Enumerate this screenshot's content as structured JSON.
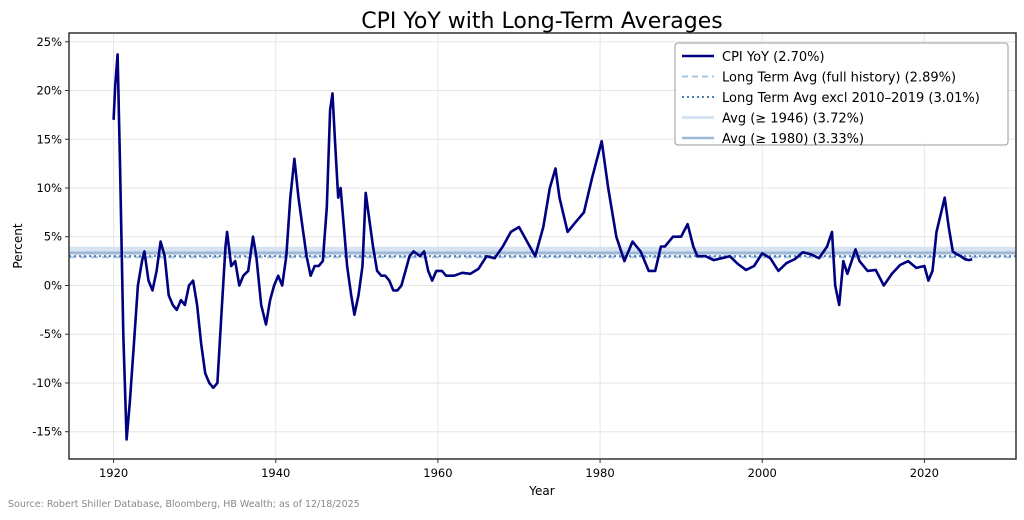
{
  "chart_data": {
    "type": "line",
    "title": "CPI YoY with Long-Term Averages",
    "xlabel": "Year",
    "ylabel": "Percent",
    "xlim": [
      1914.5,
      2031.3
    ],
    "ylim": [
      -17.8,
      25.9
    ],
    "xticks": [
      1920,
      1940,
      1960,
      1980,
      2000,
      2020
    ],
    "yticks": [
      -15,
      -10,
      -5,
      0,
      5,
      10,
      15,
      20,
      25
    ],
    "ytick_format": "%",
    "grid": true,
    "legend_position": "top-right",
    "series": [
      {
        "name": "CPI YoY (2.70%)",
        "color": "#000080",
        "x": [
          1920.0,
          1920.2,
          1920.5,
          1920.8,
          1921.2,
          1921.6,
          1922,
          1922.5,
          1923,
          1923.5,
          1923.8,
          1924.3,
          1924.8,
          1925.3,
          1925.8,
          1926.3,
          1926.8,
          1927.3,
          1927.8,
          1928.3,
          1928.8,
          1929.3,
          1929.8,
          1930.3,
          1930.8,
          1931.3,
          1931.8,
          1932.3,
          1932.8,
          1933.3,
          1933.8,
          1934,
          1934.5,
          1935,
          1935.5,
          1936,
          1936.6,
          1937.2,
          1937.6,
          1938.2,
          1938.8,
          1939.3,
          1939.8,
          1940.3,
          1940.8,
          1941.3,
          1941.8,
          1942.3,
          1942.8,
          1943.3,
          1943.8,
          1944.3,
          1944.8,
          1945.3,
          1945.8,
          1946.3,
          1946.7,
          1947,
          1947.3,
          1947.7,
          1948,
          1948.4,
          1948.8,
          1949.3,
          1949.7,
          1950.2,
          1950.7,
          1951.1,
          1951.5,
          1952,
          1952.5,
          1953,
          1953.5,
          1954,
          1954.5,
          1955,
          1955.5,
          1956,
          1956.5,
          1957,
          1957.8,
          1958.3,
          1958.8,
          1959.3,
          1959.8,
          1960.5,
          1961,
          1962,
          1963,
          1964,
          1965,
          1966,
          1967,
          1968,
          1969,
          1970,
          1971,
          1972,
          1973,
          1973.8,
          1974.5,
          1975,
          1976,
          1977,
          1978,
          1979,
          1980.2,
          1981,
          1982,
          1983,
          1984,
          1985,
          1986,
          1986.8,
          1987.5,
          1988,
          1989,
          1990,
          1990.8,
          1991.5,
          1992,
          1993,
          1994,
          1995,
          1996,
          1997,
          1998,
          1999,
          2000,
          2001,
          2002,
          2003,
          2004,
          2005,
          2006,
          2007,
          2008,
          2008.6,
          2009,
          2009.5,
          2010,
          2010.5,
          2011.5,
          2012,
          2013,
          2014,
          2015,
          2016,
          2017,
          2018,
          2019,
          2020,
          2020.5,
          2021,
          2021.5,
          2022.5,
          2023,
          2023.5,
          2024,
          2024.5,
          2025,
          2025.5,
          2025.9
        ],
        "y": [
          17,
          20.5,
          23.7,
          12,
          -5,
          -15.8,
          -12,
          -6,
          0,
          2.5,
          3.5,
          0.5,
          -0.5,
          1.5,
          4.5,
          3,
          -1,
          -2,
          -2.5,
          -1.5,
          -2,
          0,
          0.5,
          -2,
          -6,
          -9,
          -10,
          -10.5,
          -10,
          -3,
          4,
          5.5,
          2,
          2.5,
          0,
          1,
          1.5,
          5,
          3,
          -2,
          -4,
          -1.5,
          0,
          1,
          0,
          3,
          9,
          13,
          9,
          6,
          3,
          1,
          2,
          2,
          2.5,
          8,
          18,
          19.7,
          15,
          9,
          10,
          6,
          2,
          -1,
          -3,
          -1,
          2,
          9.5,
          7,
          4,
          1.5,
          1,
          1,
          0.5,
          -0.5,
          -0.5,
          0,
          1.5,
          3,
          3.5,
          3,
          3.5,
          1.5,
          0.5,
          1.5,
          1.5,
          1,
          1,
          1.3,
          1.2,
          1.7,
          3,
          2.8,
          4,
          5.5,
          6,
          4.5,
          3,
          6,
          10,
          12,
          9,
          5.5,
          6.5,
          7.5,
          11,
          14.8,
          10,
          5,
          2.5,
          4.5,
          3.5,
          1.5,
          1.5,
          4,
          4,
          5,
          5,
          6.3,
          4,
          3,
          3,
          2.6,
          2.8,
          3,
          2.2,
          1.6,
          2,
          3.3,
          2.8,
          1.5,
          2.3,
          2.7,
          3.4,
          3.2,
          2.8,
          4,
          5.5,
          0,
          -2,
          2.5,
          1.2,
          3.7,
          2.5,
          1.5,
          1.6,
          0,
          1.2,
          2.1,
          2.5,
          1.8,
          2,
          0.5,
          1.5,
          5.5,
          9,
          6,
          3.5,
          3.2,
          3,
          2.7,
          2.6,
          2.7
        ]
      },
      {
        "name": "Long Term Avg (full history) (2.89%)",
        "value": 2.89,
        "style": "dashed",
        "color": "#aac4e0"
      },
      {
        "name": "Long Term Avg excl 2010–2019 (3.01%)",
        "value": 3.01,
        "style": "dotted",
        "color": "#4a7fb5"
      },
      {
        "name": "Avg (≥ 1946) (3.72%)",
        "value": 3.72,
        "style": "solid",
        "color": "#d6e3f0"
      },
      {
        "name": "Avg (≥ 1980) (3.33%)",
        "value": 3.33,
        "style": "solid",
        "color": "#9db8d6"
      }
    ]
  },
  "source": "Source: Robert Shiller Database, Bloomberg, HB Wealth; as of 12/18/2025"
}
